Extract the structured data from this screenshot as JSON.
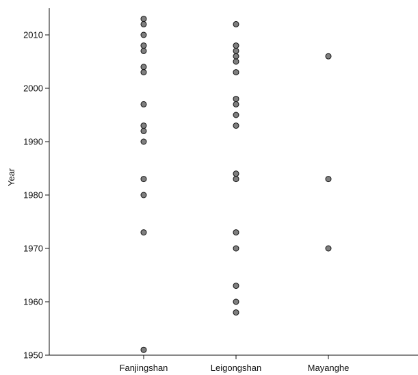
{
  "chart_data": {
    "type": "scatter",
    "title": "",
    "xlabel": "",
    "ylabel": "Year",
    "categories": [
      "Fanjingshan",
      "Leigongshan",
      "Mayanghe"
    ],
    "ylim": [
      1950,
      2015
    ],
    "yticks": [
      1950,
      1960,
      1970,
      1980,
      1990,
      2000,
      2010
    ],
    "grid": false,
    "legend": "none",
    "point_color": "#7f7f7f",
    "point_edge_color": "#111111",
    "series": [
      {
        "category": "Fanjingshan",
        "values": [
          2013,
          2012,
          2010,
          2008,
          2007,
          2004,
          2003,
          1997,
          1993,
          1992,
          1990,
          1983,
          1980,
          1973,
          1951
        ]
      },
      {
        "category": "Leigongshan",
        "values": [
          2012,
          2008,
          2007,
          2006,
          2005,
          2003,
          1998,
          1997,
          1995,
          1993,
          1984,
          1983,
          1973,
          1970,
          1963,
          1960,
          1958
        ]
      },
      {
        "category": "Mayanghe",
        "values": [
          2006,
          1983,
          1970
        ]
      }
    ]
  }
}
